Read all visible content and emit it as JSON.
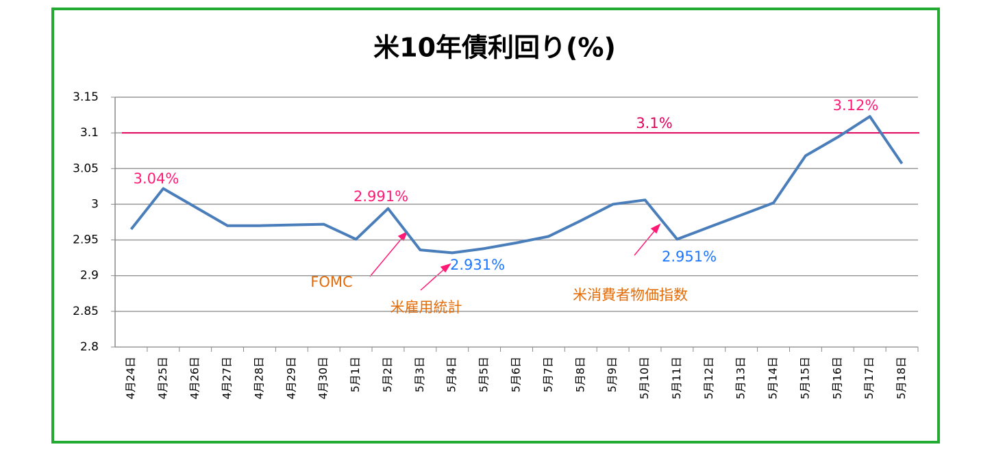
{
  "chart_data": {
    "type": "line",
    "title": "米10年債利回り(%)",
    "categories": [
      "4月24日",
      "4月25日",
      "4月26日",
      "4月27日",
      "4月28日",
      "4月29日",
      "4月30日",
      "5月1日",
      "5月2日",
      "5月3日",
      "5月4日",
      "5月5日",
      "5月6日",
      "5月7日",
      "5月8日",
      "5月9日",
      "5月10日",
      "5月11日",
      "5月12日",
      "5月13日",
      "5月14日",
      "5月15日",
      "5月16日",
      "5月17日",
      "5月18日"
    ],
    "series": [
      {
        "color": "#4a7ebb",
        "values": [
          2.965,
          3.022,
          2.996,
          2.97,
          2.97,
          2.971,
          2.972,
          2.951,
          2.994,
          2.936,
          2.932,
          2.938,
          2.946,
          2.955,
          2.977,
          3.0,
          3.006,
          2.951,
          2.968,
          2.985,
          3.002,
          3.068,
          3.094,
          3.123,
          3.057
        ]
      }
    ],
    "ylim": [
      2.8,
      3.15
    ],
    "yticks": [
      2.8,
      2.85,
      2.9,
      2.95,
      3,
      3.05,
      3.1,
      3.15
    ],
    "grid": true,
    "reference_line": {
      "value": 3.1,
      "label": "3.1%",
      "color": "#e0005a"
    },
    "annotations": [
      {
        "text": "3.04%",
        "color": "#ff1a75"
      },
      {
        "text": "2.991%",
        "color": "#ff1a75"
      },
      {
        "text": "2.931%",
        "color": "#1a75ff"
      },
      {
        "text": "2.951%",
        "color": "#1a75ff"
      },
      {
        "text": "3.12%",
        "color": "#ff1a75"
      },
      {
        "text": "FOMC",
        "color": "#e36c09"
      },
      {
        "text": "米雇用統計",
        "color": "#e36c09"
      },
      {
        "text": "米消費者物価指数",
        "color": "#e36c09"
      }
    ]
  }
}
